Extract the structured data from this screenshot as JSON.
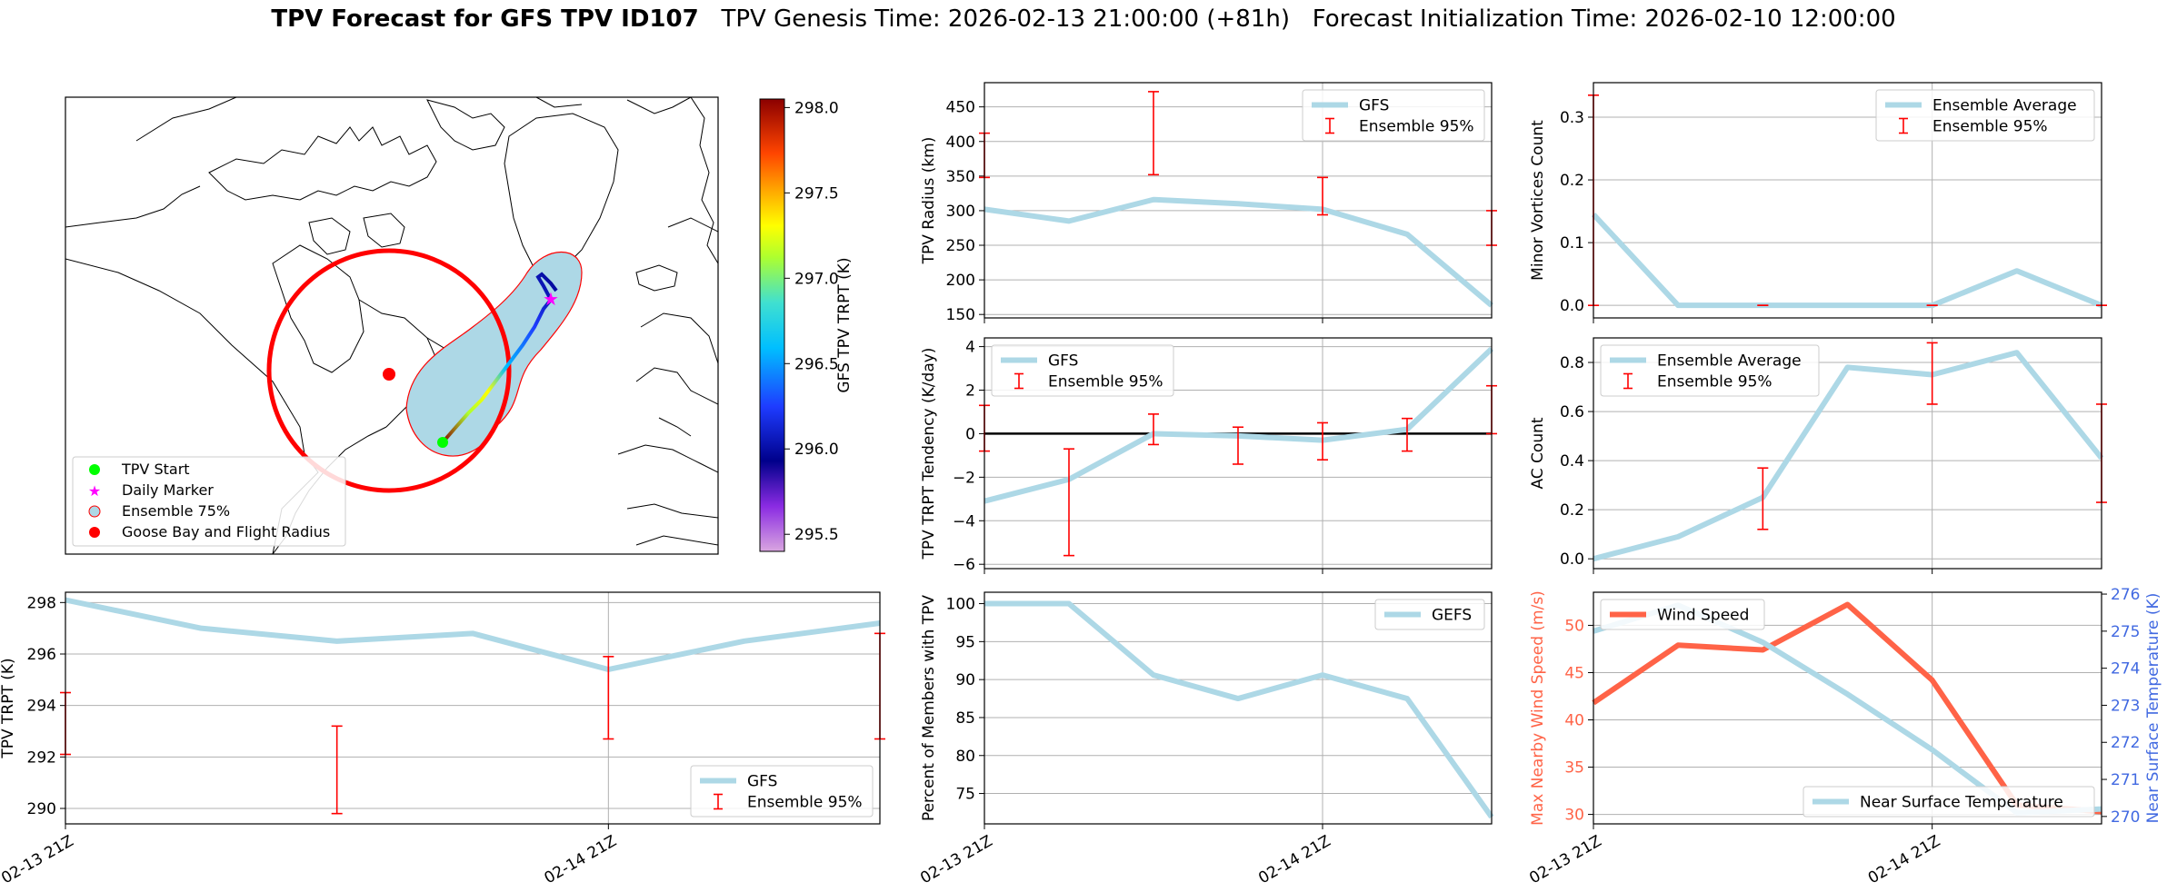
{
  "figure": {
    "title_bold": "TPV Forecast for GFS TPV ID107",
    "title_genesis": "TPV Genesis Time: 2026-02-13 21:00:00 (+81h)",
    "title_init": "Forecast Initialization Time: 2026-02-10 12:00:00"
  },
  "colors": {
    "gfs_line": "#add8e6",
    "errorbar": "#ff0000",
    "wind": "#ff6347",
    "temp_axis": "#4169e1",
    "grid": "#b0b0b0"
  },
  "map": {
    "colorbar_label": "GFS TPV TRPT (K)",
    "colorbar_ticks": [
      "298.0",
      "297.5",
      "297.0",
      "296.5",
      "296.0",
      "295.5"
    ],
    "colorbar_range": [
      295.4,
      298.05
    ],
    "legend": [
      "TPV Start",
      "Daily Marker",
      "Ensemble 75%",
      "Goose Bay and Flight Radius"
    ]
  },
  "chart_data": [
    {
      "id": "radius",
      "type": "line",
      "ylabel": "TPV Radius (km)",
      "x": [
        0,
        1,
        2,
        3,
        4,
        5,
        6
      ],
      "ylim": [
        145,
        485
      ],
      "yticks": [
        "150",
        "200",
        "250",
        "300",
        "350",
        "400",
        "450"
      ],
      "yticks_values": [
        150,
        200,
        250,
        300,
        350,
        400,
        450
      ],
      "series": [
        {
          "name": "GFS",
          "values": [
            302,
            285,
            316,
            310,
            302,
            266,
            163
          ]
        }
      ],
      "errorbars": [
        {
          "x": 0,
          "low": 348,
          "high": 412
        },
        {
          "x": 2,
          "low": 352,
          "high": 472
        },
        {
          "x": 4,
          "low": 294,
          "high": 348
        },
        {
          "x": 6,
          "low": 250,
          "high": 300
        }
      ],
      "legend": [
        "GFS",
        "Ensemble 95%"
      ],
      "legend_pos": "top-right"
    },
    {
      "id": "minor",
      "type": "line",
      "ylabel": "Minor Vortices Count",
      "x": [
        0,
        1,
        2,
        3,
        4,
        5,
        6
      ],
      "ylim": [
        -0.02,
        0.355
      ],
      "yticks": [
        "0.0",
        "0.1",
        "0.2",
        "0.3"
      ],
      "yticks_values": [
        0,
        0.1,
        0.2,
        0.3
      ],
      "series": [
        {
          "name": "Ensemble Average",
          "values": [
            0.145,
            0.0,
            0.0,
            0.0,
            0.0,
            0.055,
            0.0
          ]
        }
      ],
      "errorbars": [
        {
          "x": 0,
          "low": 0.0,
          "high": 0.335
        },
        {
          "x": 2,
          "low": 0.0,
          "high": 0.0
        },
        {
          "x": 4,
          "low": 0.0,
          "high": 0.0
        },
        {
          "x": 6,
          "low": 0.0,
          "high": 0.0
        }
      ],
      "legend": [
        "Ensemble Average",
        "Ensemble 95%"
      ],
      "legend_pos": "top-right"
    },
    {
      "id": "tendency",
      "type": "line",
      "ylabel": "TPV TRPT Tendency (K/day)",
      "x": [
        0,
        1,
        2,
        3,
        4,
        5,
        6
      ],
      "ylim": [
        -6.2,
        4.4
      ],
      "yticks": [
        "−6",
        "−4",
        "−2",
        "0",
        "2",
        "4"
      ],
      "yticks_values": [
        -6,
        -4,
        -2,
        0,
        2,
        4
      ],
      "series": [
        {
          "name": "GFS",
          "values": [
            -3.1,
            -2.1,
            0.0,
            -0.1,
            -0.3,
            0.2,
            3.9
          ]
        }
      ],
      "zero_line": true,
      "errorbars": [
        {
          "x": 0,
          "low": -0.8,
          "high": 1.3
        },
        {
          "x": 1,
          "low": -5.6,
          "high": -0.7
        },
        {
          "x": 2,
          "low": -0.5,
          "high": 0.9
        },
        {
          "x": 3,
          "low": -1.4,
          "high": 0.3
        },
        {
          "x": 4,
          "low": -1.2,
          "high": 0.5
        },
        {
          "x": 5,
          "low": -0.8,
          "high": 0.7
        },
        {
          "x": 6,
          "low": 0.0,
          "high": 2.2
        }
      ],
      "legend": [
        "GFS",
        "Ensemble 95%"
      ],
      "legend_pos": "top-left"
    },
    {
      "id": "ac",
      "type": "line",
      "ylabel": "AC Count",
      "x": [
        0,
        1,
        2,
        3,
        4,
        5,
        6
      ],
      "ylim": [
        -0.04,
        0.9
      ],
      "yticks": [
        "0.0",
        "0.2",
        "0.4",
        "0.6",
        "0.8"
      ],
      "yticks_values": [
        0,
        0.2,
        0.4,
        0.6,
        0.8
      ],
      "series": [
        {
          "name": "Ensemble Average",
          "values": [
            0.0,
            0.09,
            0.25,
            0.78,
            0.75,
            0.84,
            0.41
          ]
        }
      ],
      "errorbars": [
        {
          "x": 2,
          "low": 0.12,
          "high": 0.37
        },
        {
          "x": 4,
          "low": 0.63,
          "high": 0.88
        },
        {
          "x": 6,
          "low": 0.23,
          "high": 0.63
        }
      ],
      "legend": [
        "Ensemble Average",
        "Ensemble 95%"
      ],
      "legend_pos": "top-left"
    },
    {
      "id": "trpt",
      "type": "line",
      "ylabel": "TPV TRPT (K)",
      "x": [
        0,
        1,
        2,
        3,
        4,
        5,
        6
      ],
      "ylim": [
        289.4,
        298.4
      ],
      "yticks": [
        "290",
        "292",
        "294",
        "296",
        "298"
      ],
      "yticks_values": [
        290,
        292,
        294,
        296,
        298
      ],
      "series": [
        {
          "name": "GFS",
          "values": [
            298.1,
            297.0,
            296.5,
            296.8,
            295.4,
            296.5,
            297.2
          ]
        }
      ],
      "errorbars": [
        {
          "x": 0,
          "low": 292.1,
          "high": 294.5
        },
        {
          "x": 2,
          "low": 289.8,
          "high": 293.2
        },
        {
          "x": 4,
          "low": 292.7,
          "high": 295.9
        },
        {
          "x": 6,
          "low": 292.7,
          "high": 296.8
        }
      ],
      "xticks": [
        "02-13 21Z",
        "02-14 21Z"
      ],
      "xticks_values": [
        0,
        4
      ],
      "legend": [
        "GFS",
        "Ensemble 95%"
      ],
      "legend_pos": "bottom-right"
    },
    {
      "id": "members",
      "type": "line",
      "ylabel": "Percent of Members with TPV",
      "x": [
        0,
        1,
        2,
        3,
        4,
        5,
        6
      ],
      "ylim": [
        71,
        101.5
      ],
      "yticks": [
        "75",
        "80",
        "85",
        "90",
        "95",
        "100"
      ],
      "yticks_values": [
        75,
        80,
        85,
        90,
        95,
        100
      ],
      "series": [
        {
          "name": "GEFS",
          "values": [
            100,
            100,
            90.6,
            87.5,
            90.6,
            87.5,
            71.9
          ]
        }
      ],
      "xticks": [
        "02-13 21Z",
        "02-14 21Z"
      ],
      "xticks_values": [
        0,
        4
      ],
      "legend": [
        "GEFS"
      ],
      "legend_pos": "top-right"
    },
    {
      "id": "wind_temp",
      "type": "line",
      "ylabel": "Max Nearby Wind Speed (m/s)",
      "ylabel_right": "Near Surface Temperature (K)",
      "x": [
        0,
        1,
        2,
        3,
        4,
        5,
        6
      ],
      "ylim": [
        29,
        53.5
      ],
      "ylim_right": [
        269.8,
        276.05
      ],
      "yticks": [
        "30",
        "35",
        "40",
        "45",
        "50"
      ],
      "yticks_values": [
        30,
        35,
        40,
        45,
        50
      ],
      "yticks_right": [
        "270",
        "271",
        "272",
        "273",
        "274",
        "275",
        "276"
      ],
      "yticks_right_values": [
        270,
        271,
        272,
        273,
        274,
        275,
        276
      ],
      "series": [
        {
          "name": "Wind Speed",
          "axis": "left",
          "values": [
            41.8,
            47.9,
            47.4,
            52.2,
            44.2,
            31.0,
            30.3
          ]
        },
        {
          "name": "Near Surface Temperature",
          "axis": "right",
          "values": [
            275.0,
            275.7,
            274.7,
            273.3,
            271.8,
            270.1,
            270.2
          ]
        }
      ],
      "xticks": [
        "02-13 21Z",
        "02-14 21Z"
      ],
      "xticks_values": [
        0,
        4
      ],
      "legend": [
        "Wind Speed"
      ],
      "legend_right": [
        "Near Surface Temperature"
      ]
    }
  ]
}
